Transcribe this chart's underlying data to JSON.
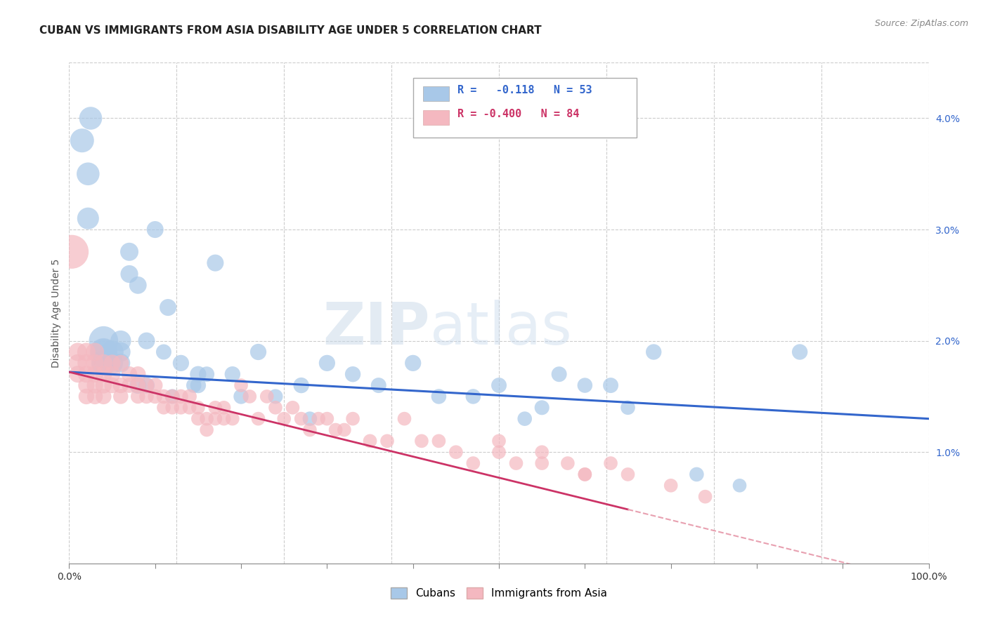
{
  "title": "CUBAN VS IMMIGRANTS FROM ASIA DISABILITY AGE UNDER 5 CORRELATION CHART",
  "source": "Source: ZipAtlas.com",
  "ylabel": "Disability Age Under 5",
  "ylabel_right_ticks": [
    "1.0%",
    "2.0%",
    "3.0%",
    "4.0%"
  ],
  "ylabel_right_vals": [
    0.01,
    0.02,
    0.03,
    0.04
  ],
  "xlim": [
    0.0,
    1.0
  ],
  "ylim": [
    0.0,
    0.045
  ],
  "blue_color": "#a8c8e8",
  "pink_color": "#f4b8c0",
  "trendline_blue_color": "#3366cc",
  "trendline_pink_color": "#cc3366",
  "trendline_pink_dashed_color": "#e8a0b0",
  "watermark_zip": "ZIP",
  "watermark_atlas": "atlas",
  "grid_color": "#cccccc",
  "background_color": "#ffffff",
  "title_fontsize": 11,
  "axis_fontsize": 10,
  "cubans_x": [
    0.015,
    0.022,
    0.022,
    0.025,
    0.04,
    0.04,
    0.04,
    0.04,
    0.04,
    0.05,
    0.05,
    0.06,
    0.06,
    0.06,
    0.07,
    0.07,
    0.08,
    0.08,
    0.09,
    0.09,
    0.1,
    0.115,
    0.13,
    0.15,
    0.15,
    0.17,
    0.19,
    0.22,
    0.27,
    0.3,
    0.33,
    0.36,
    0.4,
    0.43,
    0.47,
    0.5,
    0.53,
    0.57,
    0.63,
    0.68,
    0.73,
    0.78,
    0.85,
    0.55,
    0.6,
    0.65,
    0.2,
    0.24,
    0.28,
    0.11,
    0.12,
    0.145,
    0.16
  ],
  "cubans_y": [
    0.038,
    0.035,
    0.031,
    0.04,
    0.02,
    0.019,
    0.019,
    0.018,
    0.018,
    0.019,
    0.018,
    0.02,
    0.019,
    0.018,
    0.028,
    0.026,
    0.025,
    0.016,
    0.02,
    0.016,
    0.03,
    0.023,
    0.018,
    0.017,
    0.016,
    0.027,
    0.017,
    0.019,
    0.016,
    0.018,
    0.017,
    0.016,
    0.018,
    0.015,
    0.015,
    0.016,
    0.013,
    0.017,
    0.016,
    0.019,
    0.008,
    0.007,
    0.019,
    0.014,
    0.016,
    0.014,
    0.015,
    0.015,
    0.013,
    0.019,
    0.015,
    0.016,
    0.017
  ],
  "cubans_size": [
    60,
    55,
    50,
    55,
    90,
    80,
    70,
    65,
    60,
    55,
    50,
    45,
    40,
    38,
    35,
    33,
    32,
    30,
    30,
    28,
    30,
    30,
    28,
    28,
    26,
    30,
    26,
    28,
    26,
    28,
    26,
    25,
    28,
    24,
    24,
    25,
    22,
    25,
    25,
    26,
    22,
    20,
    26,
    23,
    24,
    22,
    24,
    23,
    22,
    25,
    23,
    24,
    25
  ],
  "asia_x": [
    0.003,
    0.01,
    0.01,
    0.01,
    0.02,
    0.02,
    0.02,
    0.02,
    0.02,
    0.03,
    0.03,
    0.03,
    0.03,
    0.03,
    0.04,
    0.04,
    0.04,
    0.04,
    0.05,
    0.05,
    0.05,
    0.06,
    0.06,
    0.06,
    0.07,
    0.07,
    0.08,
    0.08,
    0.08,
    0.09,
    0.09,
    0.1,
    0.1,
    0.11,
    0.11,
    0.12,
    0.12,
    0.13,
    0.13,
    0.14,
    0.14,
    0.15,
    0.15,
    0.16,
    0.16,
    0.17,
    0.17,
    0.18,
    0.18,
    0.19,
    0.2,
    0.21,
    0.22,
    0.23,
    0.24,
    0.25,
    0.26,
    0.27,
    0.28,
    0.29,
    0.3,
    0.31,
    0.32,
    0.33,
    0.35,
    0.37,
    0.39,
    0.41,
    0.43,
    0.45,
    0.47,
    0.5,
    0.52,
    0.55,
    0.58,
    0.6,
    0.63,
    0.65,
    0.5,
    0.55,
    0.6,
    0.7,
    0.74
  ],
  "asia_y": [
    0.028,
    0.019,
    0.018,
    0.017,
    0.019,
    0.018,
    0.017,
    0.016,
    0.015,
    0.019,
    0.018,
    0.017,
    0.016,
    0.015,
    0.018,
    0.017,
    0.016,
    0.015,
    0.018,
    0.017,
    0.016,
    0.018,
    0.016,
    0.015,
    0.017,
    0.016,
    0.017,
    0.016,
    0.015,
    0.016,
    0.015,
    0.016,
    0.015,
    0.015,
    0.014,
    0.015,
    0.014,
    0.015,
    0.014,
    0.015,
    0.014,
    0.014,
    0.013,
    0.013,
    0.012,
    0.014,
    0.013,
    0.014,
    0.013,
    0.013,
    0.016,
    0.015,
    0.013,
    0.015,
    0.014,
    0.013,
    0.014,
    0.013,
    0.012,
    0.013,
    0.013,
    0.012,
    0.012,
    0.013,
    0.011,
    0.011,
    0.013,
    0.011,
    0.011,
    0.01,
    0.009,
    0.01,
    0.009,
    0.009,
    0.009,
    0.008,
    0.009,
    0.008,
    0.011,
    0.01,
    0.008,
    0.007,
    0.006
  ],
  "asia_size": [
    120,
    35,
    33,
    30,
    35,
    33,
    30,
    28,
    26,
    35,
    33,
    30,
    28,
    26,
    33,
    30,
    28,
    26,
    30,
    28,
    26,
    28,
    26,
    24,
    26,
    24,
    26,
    24,
    22,
    24,
    22,
    24,
    22,
    22,
    20,
    22,
    20,
    22,
    20,
    22,
    20,
    20,
    20,
    20,
    20,
    20,
    20,
    20,
    20,
    20,
    20,
    20,
    20,
    20,
    20,
    20,
    20,
    20,
    20,
    20,
    20,
    20,
    20,
    20,
    20,
    20,
    20,
    20,
    20,
    20,
    20,
    20,
    20,
    20,
    20,
    20,
    20,
    20,
    20,
    20,
    20,
    20,
    20
  ]
}
